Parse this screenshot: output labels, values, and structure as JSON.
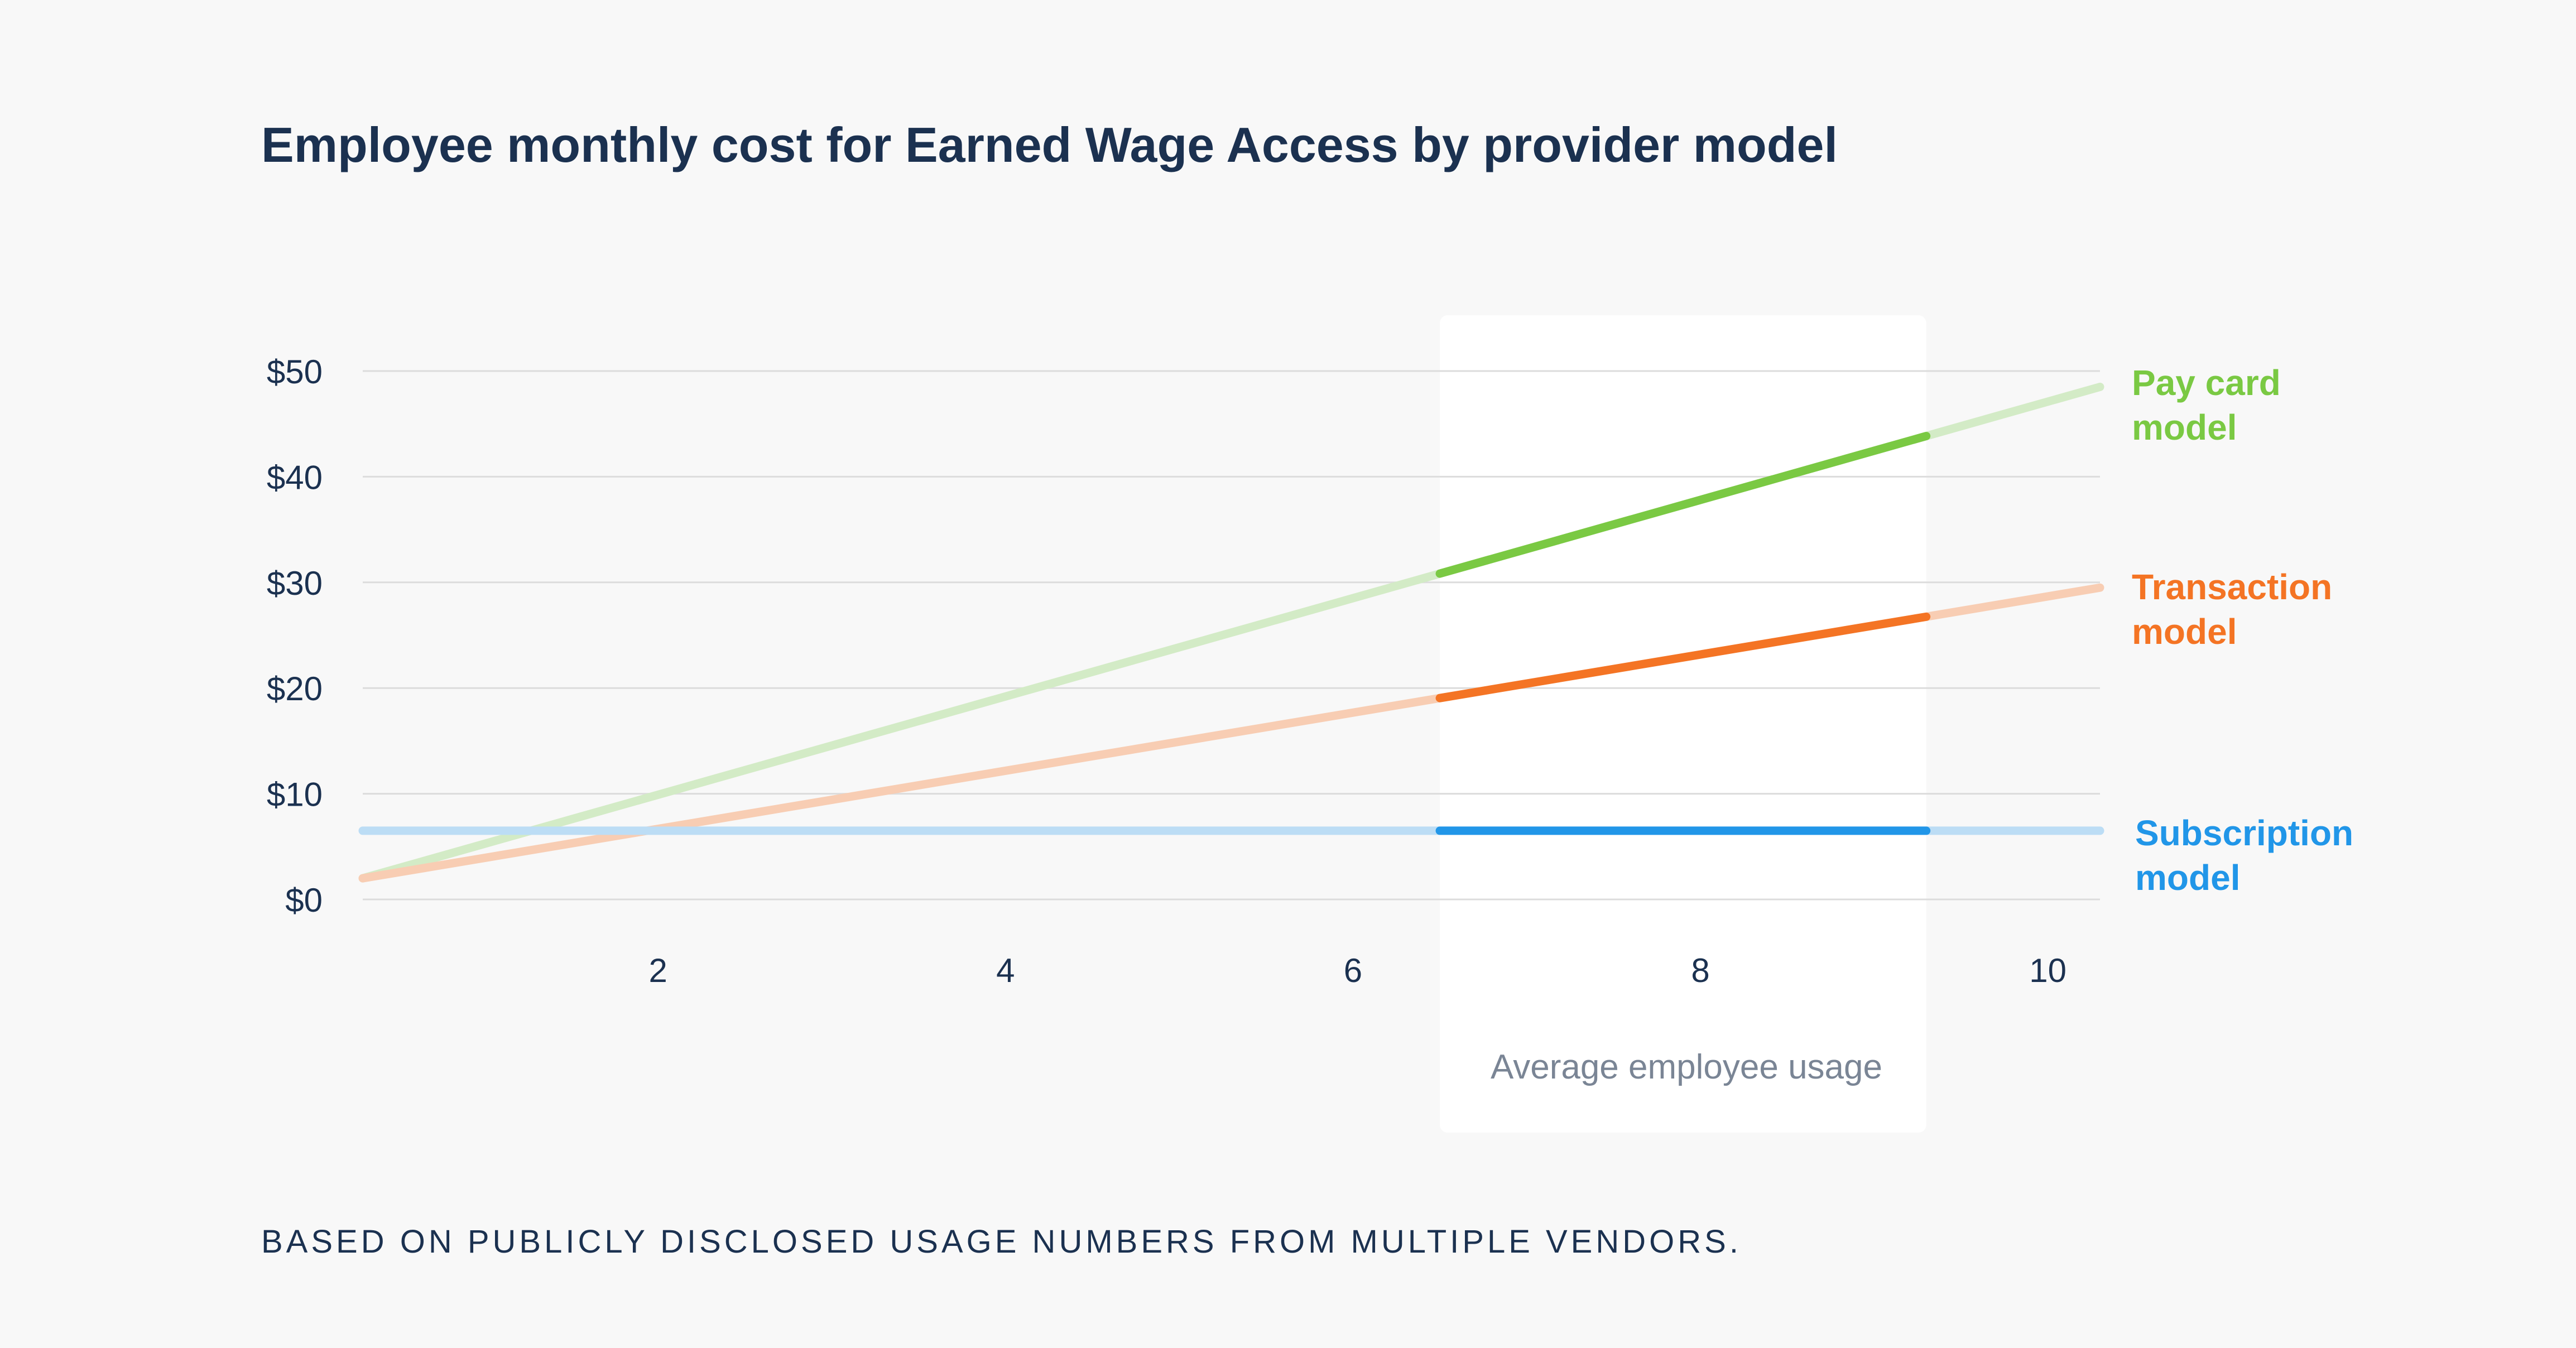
{
  "colors": {
    "background": "#f8f8f8",
    "text": "#1b3150",
    "muted": "#7a8595",
    "grid": "#dcdcdc"
  },
  "chart_data": {
    "type": "line",
    "title": "Employee monthly cost for Earned Wage Access by provider model",
    "xlabel": "Average employee usage",
    "ylabel": "",
    "xlim": [
      0.3,
      10.3
    ],
    "ylim": [
      0,
      50
    ],
    "xticks": [
      {
        "value": 2,
        "label": "2"
      },
      {
        "value": 4,
        "label": "4"
      },
      {
        "value": 6,
        "label": "6"
      },
      {
        "value": 8,
        "label": "8"
      },
      {
        "value": 10,
        "label": "10"
      }
    ],
    "yticks": [
      {
        "value": 0,
        "label": "$0"
      },
      {
        "value": 10,
        "label": "$10"
      },
      {
        "value": 20,
        "label": "$20"
      },
      {
        "value": 30,
        "label": "$30"
      },
      {
        "value": 40,
        "label": "$40"
      },
      {
        "value": 50,
        "label": "$50"
      }
    ],
    "highlight_range": [
      6.5,
      9.3
    ],
    "series": [
      {
        "key": "paycard",
        "name_lines": [
          "Pay card",
          "model"
        ],
        "color": "#7ac943",
        "faded_color": "#d3ebc6",
        "x": [
          0.3,
          10.3
        ],
        "y": [
          2,
          48.5
        ]
      },
      {
        "key": "transaction",
        "name_lines": [
          "Transaction",
          "model"
        ],
        "color": "#f47424",
        "faded_color": "#f8cdb3",
        "x": [
          0.3,
          10.3
        ],
        "y": [
          2,
          29.5
        ]
      },
      {
        "key": "subscription",
        "name_lines": [
          "Subscription",
          "model"
        ],
        "color": "#2196e8",
        "faded_color": "#bcddf5",
        "x": [
          0.3,
          10.3
        ],
        "y": [
          6.5,
          6.5
        ]
      }
    ]
  },
  "footnote": "BASED ON PUBLICLY DISCLOSED USAGE NUMBERS FROM MULTIPLE VENDORS."
}
